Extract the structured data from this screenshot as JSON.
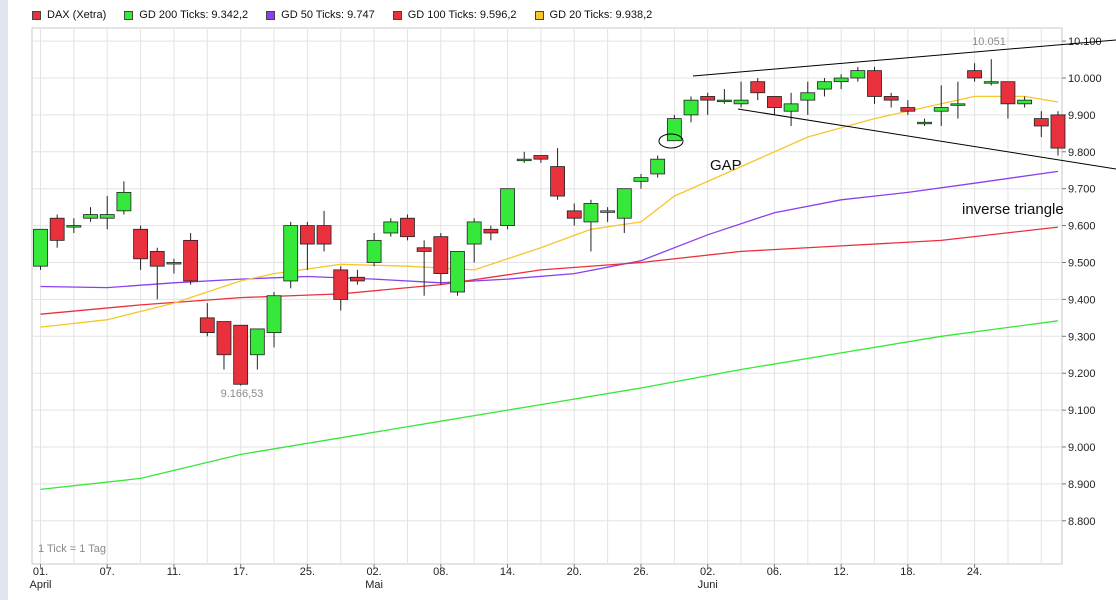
{
  "legend": [
    {
      "label": "DAX (Xetra)",
      "color": "#e8313c"
    },
    {
      "label": "GD 200 Ticks: 9.342,2",
      "color": "#36e83a"
    },
    {
      "label": "GD 50 Ticks: 9.747",
      "color": "#8a3ff0"
    },
    {
      "label": "GD 100 Ticks: 9.596,2",
      "color": "#e8313c"
    },
    {
      "label": "GD 20 Ticks: 9.938,2",
      "color": "#f6c62c"
    }
  ],
  "footnote": "1 Tick = 1 Tag",
  "chart_data": {
    "type": "candlestick",
    "title": "",
    "xlabel": "",
    "ylabel": "",
    "ylim": [
      8700,
      10100
    ],
    "y_ticks": [
      8800,
      8900,
      9000,
      9100,
      9200,
      9300,
      9400,
      9500,
      9600,
      9700,
      9800,
      9900,
      10000,
      10100
    ],
    "y_tick_labels": [
      "8.800",
      "8.900",
      "9.000",
      "9.100",
      "9.200",
      "9.300",
      "9.400",
      "9.500",
      "9.600",
      "9.700",
      "9.800",
      "9.900",
      "10.000",
      "10.100"
    ],
    "x_ticks": [
      {
        "index": 0,
        "label": "01."
      },
      {
        "index": 4,
        "label": "07."
      },
      {
        "index": 8,
        "label": "11."
      },
      {
        "index": 12,
        "label": "17."
      },
      {
        "index": 16,
        "label": "25."
      },
      {
        "index": 20,
        "label": "02."
      },
      {
        "index": 24,
        "label": "08."
      },
      {
        "index": 28,
        "label": "14."
      },
      {
        "index": 32,
        "label": "20."
      },
      {
        "index": 36,
        "label": "26."
      },
      {
        "index": 40,
        "label": "02."
      },
      {
        "index": 44,
        "label": "06."
      },
      {
        "index": 48,
        "label": "12."
      },
      {
        "index": 52,
        "label": "18."
      },
      {
        "index": 56,
        "label": "24."
      }
    ],
    "month_labels": [
      {
        "index": 0,
        "label": "April"
      },
      {
        "index": 20,
        "label": "Mai"
      },
      {
        "index": 40,
        "label": "Juni"
      }
    ],
    "candles": [
      {
        "open": 9490,
        "high": 9590,
        "low": 9480,
        "close": 9590
      },
      {
        "open": 9620,
        "high": 9630,
        "low": 9540,
        "close": 9560
      },
      {
        "open": 9600,
        "high": 9620,
        "low": 9580,
        "close": 9600
      },
      {
        "open": 9620,
        "high": 9650,
        "low": 9610,
        "close": 9630
      },
      {
        "open": 9620,
        "high": 9680,
        "low": 9590,
        "close": 9630
      },
      {
        "open": 9640,
        "high": 9720,
        "low": 9630,
        "close": 9690
      },
      {
        "open": 9590,
        "high": 9600,
        "low": 9480,
        "close": 9510
      },
      {
        "open": 9530,
        "high": 9540,
        "low": 9400,
        "close": 9490
      },
      {
        "open": 9500,
        "high": 9510,
        "low": 9470,
        "close": 9500
      },
      {
        "open": 9560,
        "high": 9580,
        "low": 9440,
        "close": 9450
      },
      {
        "open": 9350,
        "high": 9390,
        "low": 9300,
        "close": 9310
      },
      {
        "open": 9340,
        "high": 9340,
        "low": 9210,
        "close": 9250
      },
      {
        "open": 9330,
        "high": 9330,
        "low": 9166.53,
        "close": 9170
      },
      {
        "open": 9250,
        "high": 9320,
        "low": 9210,
        "close": 9320
      },
      {
        "open": 9310,
        "high": 9420,
        "low": 9270,
        "close": 9410
      },
      {
        "open": 9450,
        "high": 9610,
        "low": 9430,
        "close": 9600
      },
      {
        "open": 9600,
        "high": 9610,
        "low": 9480,
        "close": 9550
      },
      {
        "open": 9600,
        "high": 9640,
        "low": 9530,
        "close": 9550
      },
      {
        "open": 9480,
        "high": 9490,
        "low": 9370,
        "close": 9400
      },
      {
        "open": 9460,
        "high": 9480,
        "low": 9440,
        "close": 9450
      },
      {
        "open": 9500,
        "high": 9580,
        "low": 9490,
        "close": 9560
      },
      {
        "open": 9580,
        "high": 9620,
        "low": 9570,
        "close": 9610
      },
      {
        "open": 9620,
        "high": 9630,
        "low": 9560,
        "close": 9570
      },
      {
        "open": 9540,
        "high": 9560,
        "low": 9410,
        "close": 9530
      },
      {
        "open": 9570,
        "high": 9580,
        "low": 9440,
        "close": 9470
      },
      {
        "open": 9420,
        "high": 9530,
        "low": 9410,
        "close": 9530
      },
      {
        "open": 9550,
        "high": 9620,
        "low": 9500,
        "close": 9610
      },
      {
        "open": 9590,
        "high": 9600,
        "low": 9560,
        "close": 9580
      },
      {
        "open": 9600,
        "high": 9700,
        "low": 9590,
        "close": 9700
      },
      {
        "open": 9780,
        "high": 9800,
        "low": 9770,
        "close": 9780
      },
      {
        "open": 9790,
        "high": 9790,
        "low": 9770,
        "close": 9780
      },
      {
        "open": 9760,
        "high": 9810,
        "low": 9670,
        "close": 9680
      },
      {
        "open": 9640,
        "high": 9660,
        "low": 9600,
        "close": 9620
      },
      {
        "open": 9610,
        "high": 9670,
        "low": 9530,
        "close": 9660
      },
      {
        "open": 9640,
        "high": 9650,
        "low": 9610,
        "close": 9640
      },
      {
        "open": 9620,
        "high": 9700,
        "low": 9580,
        "close": 9700
      },
      {
        "open": 9720,
        "high": 9740,
        "low": 9700,
        "close": 9730
      },
      {
        "open": 9740,
        "high": 9790,
        "low": 9730,
        "close": 9780
      },
      {
        "open": 9830,
        "high": 9900,
        "low": 9830,
        "close": 9890
      },
      {
        "open": 9900,
        "high": 9950,
        "low": 9880,
        "close": 9940
      },
      {
        "open": 9950,
        "high": 9960,
        "low": 9900,
        "close": 9940
      },
      {
        "open": 9940,
        "high": 9970,
        "low": 9930,
        "close": 9940
      },
      {
        "open": 9930,
        "high": 9990,
        "low": 9920,
        "close": 9940
      },
      {
        "open": 9990,
        "high": 10000,
        "low": 9940,
        "close": 9960
      },
      {
        "open": 9950,
        "high": 9950,
        "low": 9900,
        "close": 9920
      },
      {
        "open": 9910,
        "high": 9960,
        "low": 9870,
        "close": 9930
      },
      {
        "open": 9940,
        "high": 9990,
        "low": 9900,
        "close": 9960
      },
      {
        "open": 9970,
        "high": 10000,
        "low": 9950,
        "close": 9990
      },
      {
        "open": 9990,
        "high": 10010,
        "low": 9970,
        "close": 10000
      },
      {
        "open": 10000,
        "high": 10030,
        "low": 9990,
        "close": 10020
      },
      {
        "open": 10020,
        "high": 10030,
        "low": 9930,
        "close": 9950
      },
      {
        "open": 9950,
        "high": 9960,
        "low": 9920,
        "close": 9940
      },
      {
        "open": 9920,
        "high": 9940,
        "low": 9900,
        "close": 9910
      },
      {
        "open": 9880,
        "high": 9890,
        "low": 9870,
        "close": 9880
      },
      {
        "open": 9910,
        "high": 9980,
        "low": 9870,
        "close": 9920
      },
      {
        "open": 9930,
        "high": 9990,
        "low": 9890,
        "close": 9930
      },
      {
        "open": 10020,
        "high": 10040,
        "low": 9990,
        "close": 10000
      },
      {
        "open": 9990,
        "high": 10051,
        "low": 9980,
        "close": 9990
      },
      {
        "open": 9990,
        "high": 9990,
        "low": 9890,
        "close": 9930
      },
      {
        "open": 9930,
        "high": 9950,
        "low": 9920,
        "close": 9940
      },
      {
        "open": 9890,
        "high": 9910,
        "low": 9840,
        "close": 9870
      },
      {
        "open": 9900,
        "high": 9910,
        "low": 9790,
        "close": 9810
      }
    ],
    "series": [
      {
        "name": "GD 200 Ticks: 9.342,2",
        "color": "#36e83a",
        "values": [
          {
            "i": 0,
            "v": 8885
          },
          {
            "i": 6,
            "v": 8915
          },
          {
            "i": 12,
            "v": 8980
          },
          {
            "i": 18,
            "v": 9025
          },
          {
            "i": 24,
            "v": 9070
          },
          {
            "i": 30,
            "v": 9115
          },
          {
            "i": 36,
            "v": 9160
          },
          {
            "i": 42,
            "v": 9210
          },
          {
            "i": 48,
            "v": 9255
          },
          {
            "i": 54,
            "v": 9300
          },
          {
            "i": 61,
            "v": 9342
          }
        ]
      },
      {
        "name": "GD 50 Ticks: 9.747",
        "color": "#8a3ff0",
        "values": [
          {
            "i": 0,
            "v": 9435
          },
          {
            "i": 4,
            "v": 9432
          },
          {
            "i": 8,
            "v": 9445
          },
          {
            "i": 12,
            "v": 9455
          },
          {
            "i": 16,
            "v": 9462
          },
          {
            "i": 20,
            "v": 9455
          },
          {
            "i": 24,
            "v": 9445
          },
          {
            "i": 28,
            "v": 9455
          },
          {
            "i": 32,
            "v": 9470
          },
          {
            "i": 36,
            "v": 9505
          },
          {
            "i": 40,
            "v": 9575
          },
          {
            "i": 44,
            "v": 9635
          },
          {
            "i": 48,
            "v": 9670
          },
          {
            "i": 52,
            "v": 9690
          },
          {
            "i": 56,
            "v": 9715
          },
          {
            "i": 61,
            "v": 9747
          }
        ]
      },
      {
        "name": "GD 100 Ticks: 9.596,2",
        "color": "#e8313c",
        "values": [
          {
            "i": 0,
            "v": 9360
          },
          {
            "i": 6,
            "v": 9385
          },
          {
            "i": 12,
            "v": 9405
          },
          {
            "i": 18,
            "v": 9415
          },
          {
            "i": 24,
            "v": 9440
          },
          {
            "i": 30,
            "v": 9480
          },
          {
            "i": 36,
            "v": 9500
          },
          {
            "i": 42,
            "v": 9530
          },
          {
            "i": 48,
            "v": 9545
          },
          {
            "i": 54,
            "v": 9560
          },
          {
            "i": 61,
            "v": 9596
          }
        ]
      },
      {
        "name": "GD 20 Ticks: 9.938,2",
        "color": "#f6c62c",
        "values": [
          {
            "i": 0,
            "v": 9325
          },
          {
            "i": 4,
            "v": 9345
          },
          {
            "i": 8,
            "v": 9390
          },
          {
            "i": 12,
            "v": 9450
          },
          {
            "i": 14,
            "v": 9470
          },
          {
            "i": 18,
            "v": 9495
          },
          {
            "i": 22,
            "v": 9490
          },
          {
            "i": 26,
            "v": 9480
          },
          {
            "i": 30,
            "v": 9540
          },
          {
            "i": 33,
            "v": 9590
          },
          {
            "i": 36,
            "v": 9610
          },
          {
            "i": 38,
            "v": 9680
          },
          {
            "i": 42,
            "v": 9760
          },
          {
            "i": 46,
            "v": 9840
          },
          {
            "i": 50,
            "v": 9890
          },
          {
            "i": 54,
            "v": 9930
          },
          {
            "i": 56,
            "v": 9950
          },
          {
            "i": 59,
            "v": 9950
          },
          {
            "i": 61,
            "v": 9935
          }
        ]
      }
    ],
    "annotations": [
      {
        "type": "label",
        "text": "9.166,53",
        "at_index": 12,
        "value": 9166.53
      },
      {
        "type": "label",
        "text": "10.051",
        "at_index": 57,
        "value": 10051
      },
      {
        "type": "text",
        "text": "GAP"
      },
      {
        "type": "text",
        "text": "inverse triangle"
      }
    ]
  }
}
